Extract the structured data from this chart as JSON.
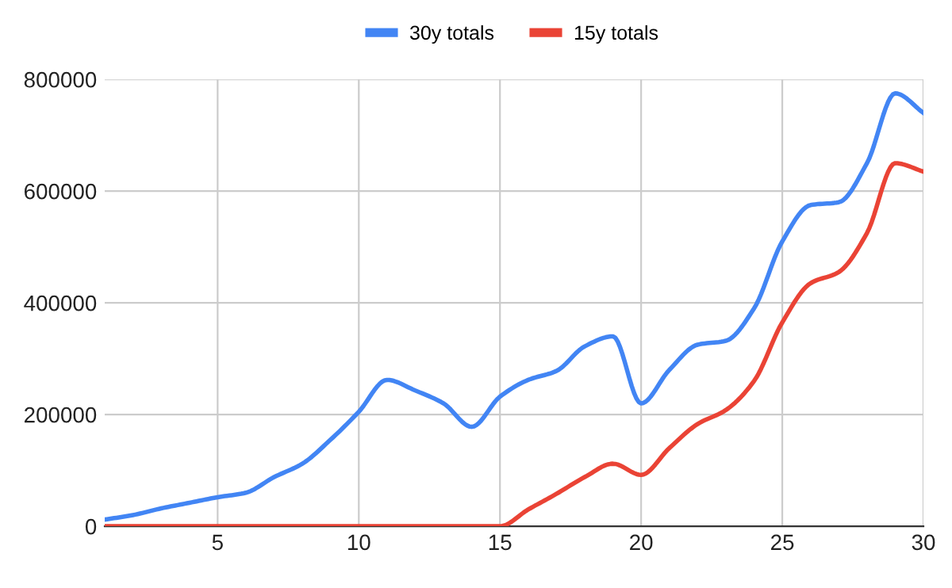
{
  "chart_data": {
    "type": "line",
    "x": [
      1,
      2,
      3,
      4,
      5,
      6,
      7,
      8,
      9,
      10,
      11,
      12,
      13,
      14,
      15,
      16,
      17,
      18,
      19,
      20,
      21,
      22,
      23,
      24,
      25,
      26,
      27,
      28,
      29,
      30
    ],
    "series": [
      {
        "name": "30y totals",
        "color": "#4285f4",
        "values": [
          12000,
          20000,
          32000,
          42000,
          52000,
          60000,
          88000,
          112000,
          155000,
          205000,
          262000,
          243000,
          220000,
          178000,
          232000,
          262000,
          278000,
          322000,
          340000,
          220000,
          280000,
          325000,
          332000,
          390000,
          510000,
          575000,
          580000,
          650000,
          775000,
          740000
        ]
      },
      {
        "name": "15y totals",
        "color": "#ea4335",
        "values": [
          0,
          0,
          0,
          0,
          0,
          0,
          0,
          0,
          0,
          0,
          0,
          0,
          0,
          0,
          0,
          30000,
          58000,
          88000,
          112000,
          92000,
          140000,
          183000,
          208000,
          260000,
          365000,
          435000,
          455000,
          525000,
          650000,
          635000
        ]
      }
    ],
    "xlim": [
      1,
      30
    ],
    "xticks": [
      5,
      10,
      15,
      20,
      25,
      30
    ],
    "ylim": [
      0,
      800000
    ],
    "yticks": [
      0,
      200000,
      400000,
      600000,
      800000
    ],
    "grid": true,
    "legend": "top",
    "marker": "none",
    "line_style": "solid"
  }
}
